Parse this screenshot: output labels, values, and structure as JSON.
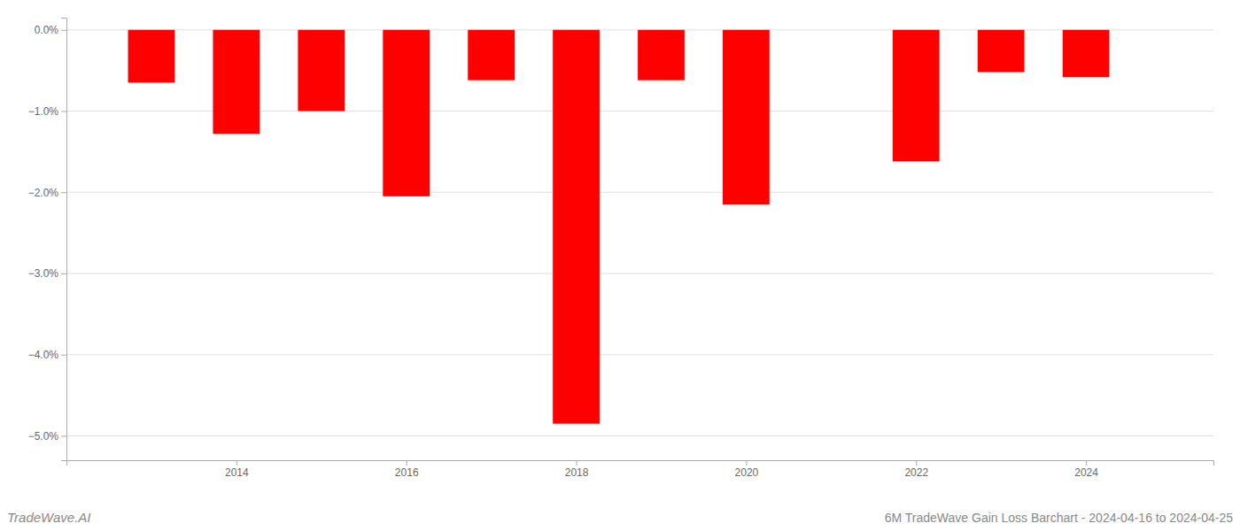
{
  "chart_data": {
    "type": "bar",
    "title": "6M TradeWave Gain Loss Barchart - 2024-04-16 to 2024-04-25",
    "annotations": [
      "TradeWave.AI"
    ],
    "x": [
      2013,
      2014,
      2015,
      2016,
      2017,
      2018,
      2019,
      2020,
      2022,
      2023,
      2024
    ],
    "values": [
      -0.65,
      -1.28,
      -1.0,
      -2.05,
      -0.62,
      -4.85,
      -0.62,
      -2.15,
      -1.62,
      -0.52,
      -0.58
    ],
    "color": "#ff0000",
    "xlim": [
      2012.0,
      2025.5
    ],
    "xticks": [
      2014,
      2016,
      2018,
      2020,
      2022,
      2024
    ],
    "ylim": [
      -5.3,
      0.15
    ],
    "yticks": [
      {
        "value": 0.0,
        "label": "0.0%"
      },
      {
        "value": -1.0,
        "label": "−1.0%"
      },
      {
        "value": -2.0,
        "label": "−2.0%"
      },
      {
        "value": -3.0,
        "label": "−3.0%"
      },
      {
        "value": -4.0,
        "label": "−4.0%"
      },
      {
        "value": -5.0,
        "label": "−5.0%"
      }
    ],
    "grid": true
  }
}
